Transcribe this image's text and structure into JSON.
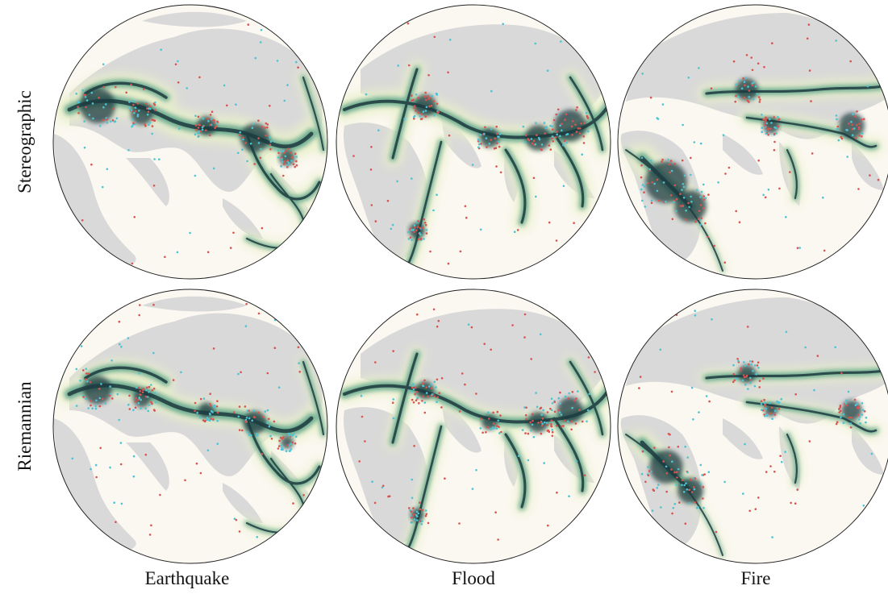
{
  "figure": {
    "row_labels": [
      "Stereographic",
      "Riemannian"
    ],
    "column_labels": [
      "Earthquake",
      "Flood",
      "Fire"
    ]
  },
  "colors": {
    "globe_background": "#fbf8f1",
    "land": "#d9d9d9",
    "density_low": "#e8f0c8",
    "density_mid": "#5fa58a",
    "density_high": "#1f3a3f",
    "samples_red": "#d9534f",
    "samples_cyan": "#4cc4d4",
    "outline": "#222222"
  },
  "panels": [
    {
      "row": "Stereographic",
      "column": "Earthquake",
      "subject": "earthquake-density-map"
    },
    {
      "row": "Stereographic",
      "column": "Flood",
      "subject": "flood-density-map"
    },
    {
      "row": "Stereographic",
      "column": "Fire",
      "subject": "fire-density-map"
    },
    {
      "row": "Riemannian",
      "column": "Earthquake",
      "subject": "earthquake-density-map"
    },
    {
      "row": "Riemannian",
      "column": "Flood",
      "subject": "flood-density-map"
    },
    {
      "row": "Riemannian",
      "column": "Fire",
      "subject": "fire-density-map"
    }
  ]
}
